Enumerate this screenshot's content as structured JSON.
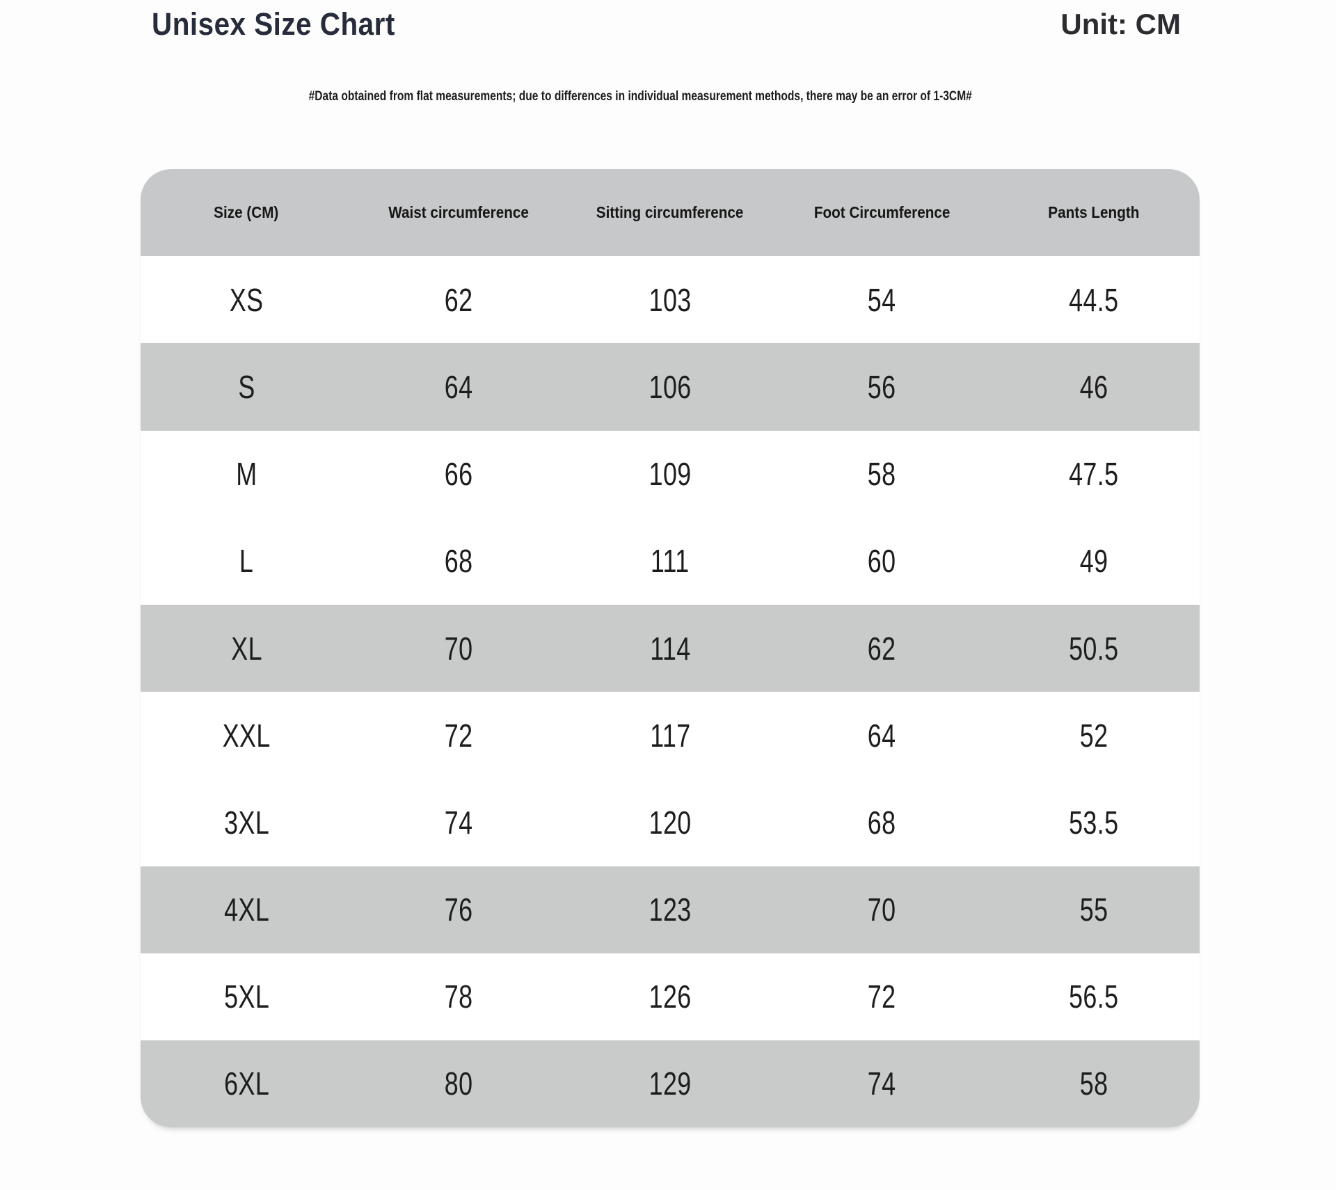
{
  "page": {
    "title": "Unisex Size Chart",
    "unit_label": "Unit: CM",
    "disclaimer": "#Data obtained from flat measurements; due to differences in individual measurement methods, there may be an error of 1-3CM#"
  },
  "colors": {
    "shaded_row_gray": "#c9caca",
    "header_row_gray": "#c7c8c9",
    "title_color": "#272c3a",
    "text_color": "#1d1d1e",
    "background": "#fdfdfd"
  },
  "chart_data": {
    "type": "table",
    "title": "Unisex Size Chart",
    "unit": "CM",
    "columns": [
      "Size (CM)",
      "Waist circumference",
      "Sitting circumference",
      "Foot Circumference",
      "Pants Length"
    ],
    "rows": [
      {
        "size": "XS",
        "values": [
          "62",
          "103",
          "54",
          "44.5"
        ],
        "shaded": false
      },
      {
        "size": "S",
        "values": [
          "64",
          "106",
          "56",
          "46"
        ],
        "shaded": true
      },
      {
        "size": "M",
        "values": [
          "66",
          "109",
          "58",
          "47.5"
        ],
        "shaded": false
      },
      {
        "size": "L",
        "values": [
          "68",
          "111",
          "60",
          "49"
        ],
        "shaded": false
      },
      {
        "size": "XL",
        "values": [
          "70",
          "114",
          "62",
          "50.5"
        ],
        "shaded": true
      },
      {
        "size": "XXL",
        "values": [
          "72",
          "117",
          "64",
          "52"
        ],
        "shaded": false
      },
      {
        "size": "3XL",
        "values": [
          "74",
          "120",
          "68",
          "53.5"
        ],
        "shaded": false
      },
      {
        "size": "4XL",
        "values": [
          "76",
          "123",
          "70",
          "55"
        ],
        "shaded": true
      },
      {
        "size": "5XL",
        "values": [
          "78",
          "126",
          "72",
          "56.5"
        ],
        "shaded": false
      },
      {
        "size": "6XL",
        "values": [
          "80",
          "129",
          "74",
          "58"
        ],
        "shaded": true
      }
    ]
  }
}
